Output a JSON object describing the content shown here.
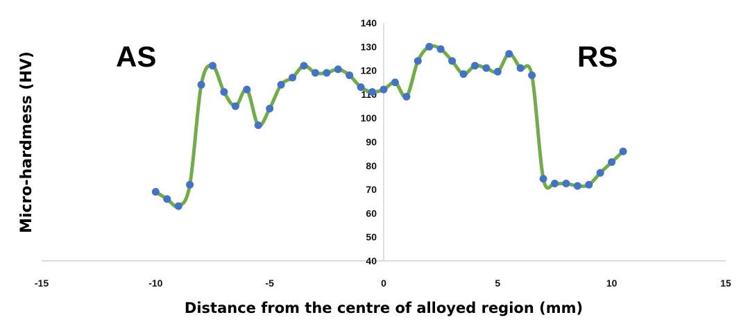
{
  "chart_data": {
    "type": "line",
    "title": "",
    "xlabel": "Distance from the centre of alloyed region (mm)",
    "ylabel": "Micro-hardmess (HV)",
    "xlim": [
      -15,
      15
    ],
    "ylim": [
      40,
      140
    ],
    "x_ticks": [
      -15,
      -10,
      -5,
      0,
      5,
      10,
      15
    ],
    "y_ticks": [
      40,
      50,
      60,
      70,
      80,
      90,
      100,
      110,
      120,
      130,
      140
    ],
    "grid": false,
    "smooth": true,
    "annotations": [
      {
        "text": "AS",
        "position": "upper-left"
      },
      {
        "text": "RS",
        "position": "upper-right"
      }
    ],
    "series": [
      {
        "line_color": "#70ad47",
        "marker_color": "#4472c4",
        "x": [
          -10,
          -9.5,
          -9,
          -8.5,
          -8,
          -7.5,
          -7,
          -6.5,
          -6,
          -5.5,
          -5,
          -4.5,
          -4,
          -3.5,
          -3,
          -2.5,
          -2,
          -1.5,
          -1,
          -0.5,
          0,
          0.5,
          1,
          1.5,
          2,
          2.5,
          3,
          3.5,
          4,
          4.5,
          5,
          5.5,
          6,
          6.5,
          7,
          7.5,
          8,
          8.5,
          9,
          9.5,
          10,
          10.5
        ],
        "y": [
          69,
          66,
          63,
          72,
          114,
          122,
          111,
          105,
          112,
          97,
          104,
          114,
          117,
          122,
          119,
          119,
          120.5,
          118,
          113,
          111,
          112,
          115,
          109,
          124,
          130,
          129,
          124,
          118.5,
          122,
          121,
          119.5,
          127,
          121,
          118,
          74.5,
          72.5,
          72.5,
          71.5,
          72,
          77,
          81.5,
          86
        ]
      }
    ]
  }
}
